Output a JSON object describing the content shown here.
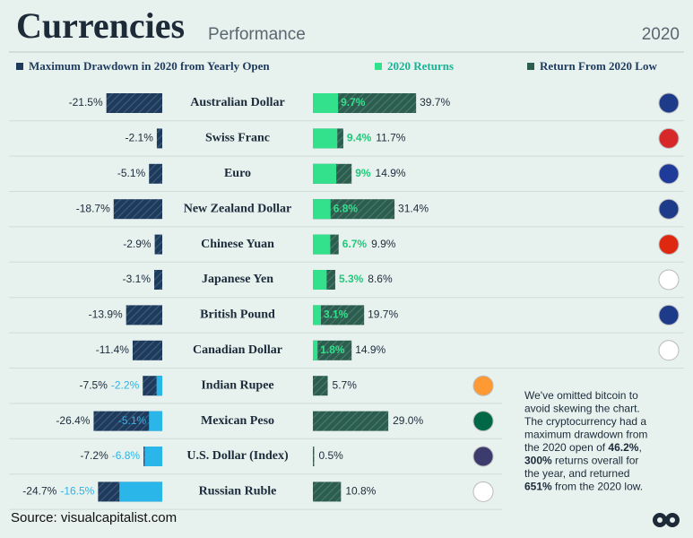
{
  "chart_data": {
    "type": "diverging-bar",
    "title": "Currencies",
    "subtitle": "Performance",
    "year": "2020",
    "categories": [
      "Australian Dollar",
      "Swiss Franc",
      "Euro",
      "New Zealand Dollar",
      "Chinese Yuan",
      "Japanese Yen",
      "British Pound",
      "Canadian Dollar",
      "Indian Rupee",
      "Mexican Peso",
      "U.S. Dollar (Index)",
      "Russian Ruble"
    ],
    "series": [
      {
        "name": "Maximum Drawdown in 2020 from Yearly Open",
        "color": "#1e3b5e",
        "values": [
          -21.5,
          -2.1,
          -5.1,
          -18.7,
          -2.9,
          -3.1,
          -13.9,
          -11.4,
          -7.5,
          -26.4,
          -7.2,
          -24.7
        ],
        "value_labels": [
          "-21.5%",
          "-2.1%",
          "-5.1%",
          "-18.7%",
          "-2.9%",
          "-3.1%",
          "-13.9%",
          "-11.4%",
          "-7.5%",
          "-26.4%",
          "-7.2%",
          "-24.7%"
        ]
      },
      {
        "name": "2020 Returns",
        "color": "#33e08c",
        "negative_color": "#2ab6e8",
        "values": [
          9.7,
          9.4,
          9,
          6.8,
          6.7,
          5.3,
          3.1,
          1.8,
          -2.2,
          -5.1,
          -6.8,
          -16.5
        ],
        "value_labels": [
          "9.7%",
          "9.4%",
          "9%",
          "6.8%",
          "6.7%",
          "5.3%",
          "3.1%",
          "1.8%",
          "-2.2%",
          "-5.1%",
          "-6.8%",
          "-16.5%"
        ]
      },
      {
        "name": "Return From 2020 Low",
        "color": "#2c5e50",
        "values": [
          39.7,
          11.7,
          14.9,
          31.4,
          9.9,
          8.6,
          19.7,
          14.9,
          5.7,
          29.0,
          0.5,
          10.8
        ],
        "value_labels": [
          "39.7%",
          "11.7%",
          "14.9%",
          "31.4%",
          "9.9%",
          "8.6%",
          "19.7%",
          "14.9%",
          "5.7%",
          "29.0%",
          "0.5%",
          "10.8%"
        ]
      }
    ],
    "note": [
      [
        {
          "text": "We've omitted bitcoin to"
        }
      ],
      [
        {
          "text": "avoid skewing the chart."
        }
      ],
      [
        {
          "text": "The cryptocurrency had a"
        }
      ],
      [
        {
          "text": "maximum drawdown from"
        }
      ],
      [
        {
          "text": "the 2020 open of "
        },
        {
          "text": "46.2%",
          "bold": true
        },
        {
          "text": ","
        }
      ],
      [
        {
          "text": "300%",
          "bold": true
        },
        {
          "text": " returns overall for"
        }
      ],
      [
        {
          "text": "the year, and returned"
        }
      ],
      [
        {
          "text": "651%",
          "bold": true
        },
        {
          "text": " from the 2020 low."
        }
      ]
    ],
    "source": "Source: visualcapitalist.com"
  }
}
